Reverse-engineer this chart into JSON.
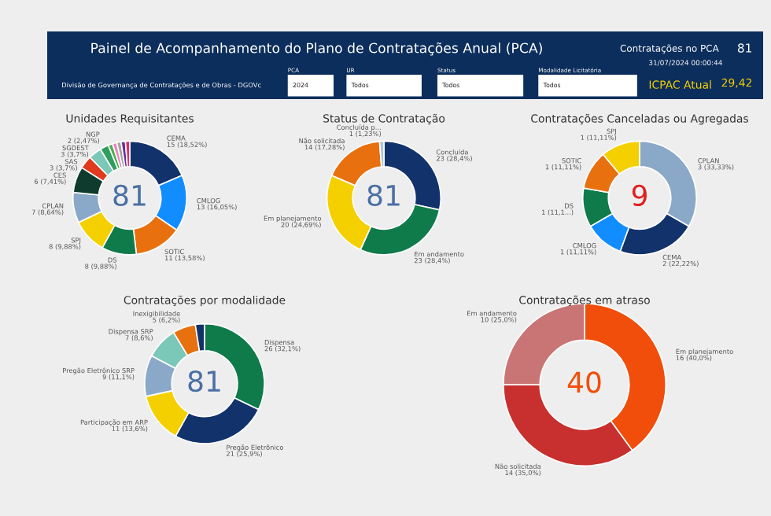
{
  "chart_data": [
    {
      "type": "other",
      "title": "Painel de Acompanhamento do Plano de Contratações Anual (PCA)",
      "subtitle": "Divisão de Governança de Contratações e de Obras - DGOVc",
      "annotations": [
        "Contratações no PCA",
        "81",
        "31/07/2024 00:00:44",
        "PCA",
        "2024",
        "UR",
        "Todos",
        "Status",
        "Todos",
        "Modalidade Licitatória",
        "Todos",
        "ICPAC Atual",
        "29,42"
      ]
    },
    {
      "type": "donut",
      "title": "Unidades Requisitantes",
      "categories": [
        "CEMA",
        "CMLOG",
        "SOTIC",
        "DS",
        "SPJ",
        "CPLAN",
        "CES",
        "SAS",
        "SGDEST",
        "NGP",
        null,
        null,
        null,
        null,
        null
      ],
      "values": [
        15,
        13,
        11,
        8,
        8,
        7,
        6,
        3,
        3,
        2,
        1,
        1,
        1,
        1,
        1
      ],
      "value_labels": [
        "15 (18,52%)",
        "13 (16,05%)",
        "11 (13,58%)",
        "8 (9,88%)",
        "8 (9,88%)",
        "7 (8,64%)",
        "6 (7,41%)",
        "3 (3,7%)",
        "3 (3,7%)",
        "2 (2,47%)",
        null,
        null,
        null,
        null,
        null
      ],
      "colors": [
        "#12326b",
        "#118dff",
        "#e8700f",
        "#0f7a4a",
        "#f5d000",
        "#8aa8c8",
        "#0e3b2e",
        "#e03a1e",
        "#7cc8b8",
        "#2f9e5d",
        "#4caf50",
        "#e887c0",
        "#a5a5a5",
        "#6b2c91",
        "#d6336c"
      ],
      "annotations": [
        "81"
      ]
    },
    {
      "type": "donut",
      "title": "Status de Contratação",
      "categories": [
        "Concluída",
        "Em andamento",
        "Em planejamento",
        "Não solicitada",
        "Concluída p..."
      ],
      "values": [
        23,
        23,
        20,
        14,
        1
      ],
      "value_labels": [
        "23 (28,4%)",
        "23 (28,4%)",
        "20 (24,69%)",
        "14 (17,28%)",
        "1 (1,23%)"
      ],
      "colors": [
        "#12326b",
        "#0f7a4a",
        "#f5d000",
        "#e8700f",
        "#a9c4dd"
      ],
      "annotations": [
        "81"
      ]
    },
    {
      "type": "donut",
      "title": "Contratações Canceladas ou Agregadas",
      "categories": [
        "CPLAN",
        "CEMA",
        "CMLOG",
        "DS",
        "SOTIC",
        "SPJ"
      ],
      "values": [
        3,
        2,
        1,
        1,
        1,
        1
      ],
      "value_labels": [
        "3 (33,33%)",
        "2 (22,22%)",
        "1 (11,11%)",
        "1 (11,1...)",
        "1 (11,11%)",
        "1 (11,11%)"
      ],
      "colors": [
        "#8aa8c8",
        "#12326b",
        "#118dff",
        "#0f7a4a",
        "#e8700f",
        "#f5d000"
      ],
      "annotations": [
        "9"
      ]
    },
    {
      "type": "donut",
      "title": "Contratações por modalidade",
      "categories": [
        "Dispensa",
        "Pregão Eletrônico",
        "Participação em ARP",
        "Pregão Eletrônico SRP",
        "Dispensa SRP",
        "Inexigibilidade",
        null
      ],
      "values": [
        26,
        21,
        11,
        9,
        7,
        5,
        2
      ],
      "value_labels": [
        "26 (32,1%)",
        "21 (25,9%)",
        "11 (13,6%)",
        "9 (11,1%)",
        "7 (8,6%)",
        "5 (6,2%)",
        null
      ],
      "colors": [
        "#0f7a4a",
        "#12326b",
        "#f5d000",
        "#8aa8c8",
        "#7cc8b8",
        "#e8700f",
        "#12326b"
      ],
      "annotations": [
        "81"
      ]
    },
    {
      "type": "donut",
      "title": "Contratações em atraso",
      "categories": [
        "Em planejamento",
        "Não solicitada",
        "Em andamento"
      ],
      "values": [
        16,
        14,
        10
      ],
      "value_labels": [
        "16 (40,0%)",
        "14 (35,0%)",
        "10 (25,0%)"
      ],
      "colors": [
        "#f04e0a",
        "#c7302e",
        "#c97575"
      ],
      "annotations": [
        "40"
      ]
    }
  ]
}
